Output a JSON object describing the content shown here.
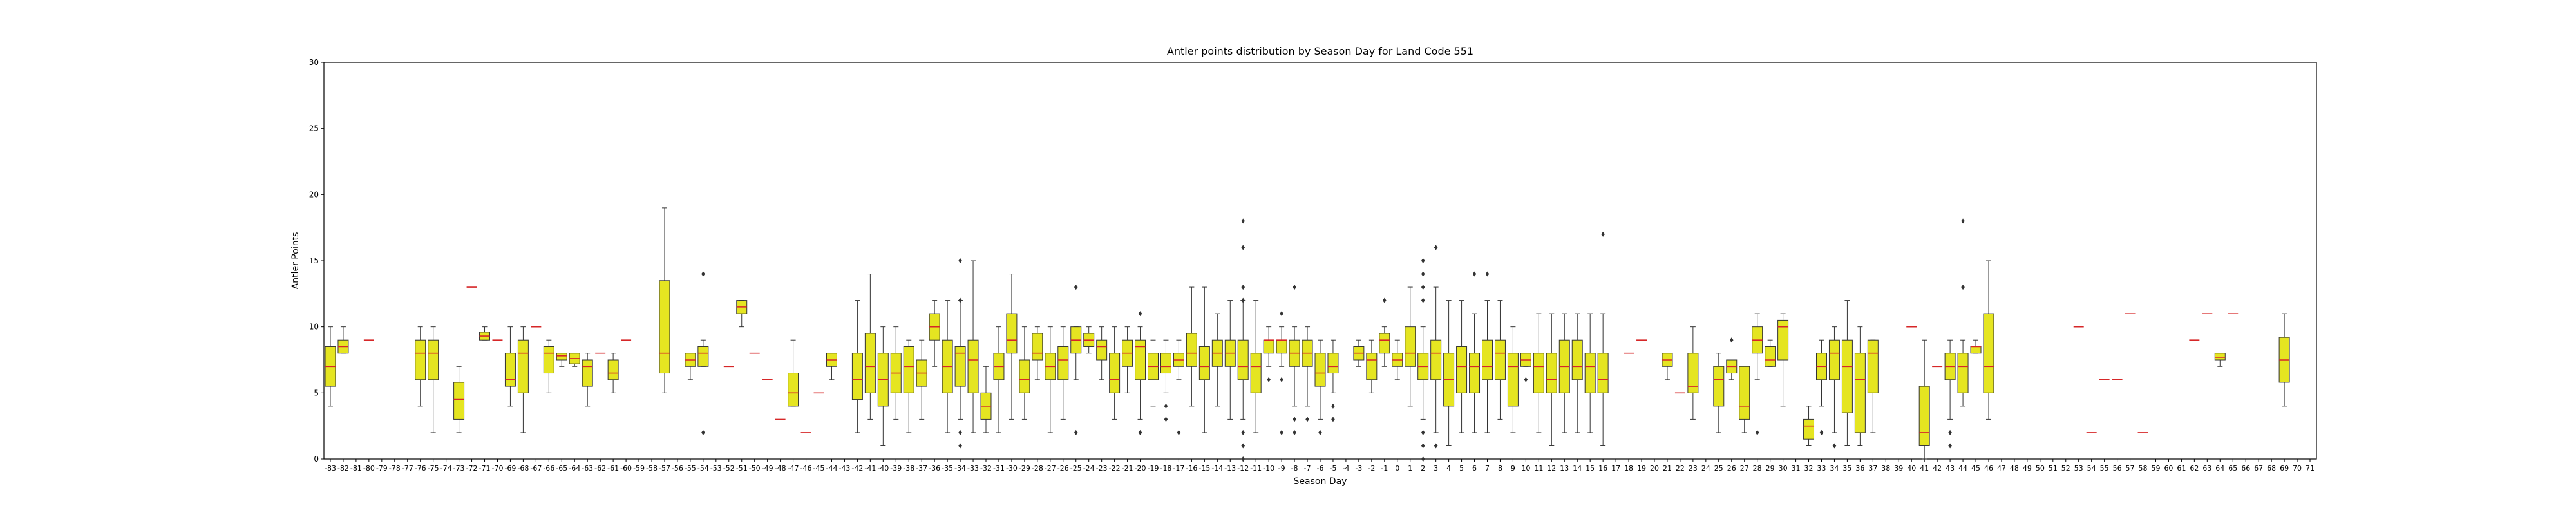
{
  "chart_data": {
    "type": "box",
    "title": "Antler points distribution by Season Day for Land Code 551",
    "xlabel": "Season Day",
    "ylabel": "Antler Points",
    "ylim": [
      0,
      30
    ],
    "yticks": [
      0,
      5,
      10,
      15,
      20,
      25,
      30
    ],
    "x_range": [
      -83,
      71
    ],
    "colors": {
      "box_fill": "#e5e521",
      "median": "#d62728",
      "whisker": "#333333",
      "flier": "#333333"
    },
    "boxes": [
      {
        "day": -83,
        "q1": 5.5,
        "median": 7,
        "q3": 8.5,
        "lo": 4,
        "hi": 10
      },
      {
        "day": -82,
        "q1": 8,
        "median": 8.5,
        "q3": 9,
        "lo": 8,
        "hi": 10
      },
      {
        "day": -80,
        "median": 9
      },
      {
        "day": -76,
        "q1": 6,
        "median": 8,
        "q3": 9,
        "lo": 4,
        "hi": 10
      },
      {
        "day": -75,
        "q1": 6,
        "median": 8,
        "q3": 9,
        "lo": 2,
        "hi": 10
      },
      {
        "day": -73,
        "q1": 3,
        "median": 4.5,
        "q3": 5.8,
        "lo": 2,
        "hi": 7
      },
      {
        "day": -72,
        "median": 13
      },
      {
        "day": -71,
        "q1": 9,
        "median": 9.3,
        "q3": 9.6,
        "lo": 9,
        "hi": 10
      },
      {
        "day": -70,
        "median": 9
      },
      {
        "day": -69,
        "q1": 5.5,
        "median": 6,
        "q3": 8,
        "lo": 4,
        "hi": 10
      },
      {
        "day": -68,
        "q1": 5,
        "median": 8,
        "q3": 9,
        "lo": 2,
        "hi": 10
      },
      {
        "day": -67,
        "median": 10
      },
      {
        "day": -66,
        "q1": 6.5,
        "median": 8,
        "q3": 8.5,
        "lo": 5,
        "hi": 9
      },
      {
        "day": -65,
        "q1": 7.5,
        "median": 7.8,
        "q3": 8,
        "lo": 7,
        "hi": 8
      },
      {
        "day": -64,
        "q1": 7.2,
        "median": 7.6,
        "q3": 8,
        "lo": 7,
        "hi": 8
      },
      {
        "day": -63,
        "q1": 5.5,
        "median": 7,
        "q3": 7.5,
        "lo": 4,
        "hi": 8
      },
      {
        "day": -62,
        "median": 8
      },
      {
        "day": -61,
        "q1": 6,
        "median": 6.5,
        "q3": 7.5,
        "lo": 5,
        "hi": 8
      },
      {
        "day": -60,
        "median": 9
      },
      {
        "day": -57,
        "q1": 6.5,
        "median": 8,
        "q3": 13.5,
        "lo": 5,
        "hi": 19
      },
      {
        "day": -55,
        "q1": 7,
        "median": 7.5,
        "q3": 8,
        "lo": 6,
        "hi": 8
      },
      {
        "day": -54,
        "q1": 7,
        "median": 8,
        "q3": 8.5,
        "lo": 7,
        "hi": 9,
        "fliers": [
          2,
          14
        ]
      },
      {
        "day": -52,
        "median": 7
      },
      {
        "day": -51,
        "q1": 11,
        "median": 11.5,
        "q3": 12,
        "lo": 10,
        "hi": 12
      },
      {
        "day": -50,
        "median": 8
      },
      {
        "day": -49,
        "median": 6
      },
      {
        "day": -48,
        "median": 3
      },
      {
        "day": -47,
        "q1": 4,
        "median": 5,
        "q3": 6.5,
        "lo": 4,
        "hi": 9
      },
      {
        "day": -46,
        "median": 2
      },
      {
        "day": -45,
        "median": 5
      },
      {
        "day": -44,
        "q1": 7,
        "median": 7.5,
        "q3": 8,
        "lo": 6,
        "hi": 8
      },
      {
        "day": -42,
        "q1": 4.5,
        "median": 6,
        "q3": 8,
        "lo": 2,
        "hi": 12
      },
      {
        "day": -41,
        "q1": 5,
        "median": 7,
        "q3": 9.5,
        "lo": 3,
        "hi": 14
      },
      {
        "day": -40,
        "q1": 4,
        "median": 6,
        "q3": 8,
        "lo": 1,
        "hi": 10
      },
      {
        "day": -39,
        "q1": 5,
        "median": 6.5,
        "q3": 8,
        "lo": 3,
        "hi": 10
      },
      {
        "day": -38,
        "q1": 5,
        "median": 7,
        "q3": 8.5,
        "lo": 2,
        "hi": 9
      },
      {
        "day": -37,
        "q1": 5.5,
        "median": 6.5,
        "q3": 7.5,
        "lo": 3,
        "hi": 9
      },
      {
        "day": -36,
        "q1": 9,
        "median": 10,
        "q3": 11,
        "lo": 7,
        "hi": 12
      },
      {
        "day": -35,
        "q1": 5,
        "median": 7,
        "q3": 9,
        "lo": 2,
        "hi": 12
      },
      {
        "day": -34,
        "q1": 5.5,
        "median": 8,
        "q3": 8.5,
        "lo": 3,
        "hi": 12,
        "fliers": [
          15,
          12,
          2,
          1
        ]
      },
      {
        "day": -33,
        "q1": 5,
        "median": 7.5,
        "q3": 9,
        "lo": 2,
        "hi": 15
      },
      {
        "day": -32,
        "q1": 3,
        "median": 4,
        "q3": 5,
        "lo": 2,
        "hi": 7
      },
      {
        "day": -31,
        "q1": 6,
        "median": 7,
        "q3": 8,
        "lo": 2,
        "hi": 10
      },
      {
        "day": -30,
        "q1": 8,
        "median": 9,
        "q3": 11,
        "lo": 3,
        "hi": 14
      },
      {
        "day": -29,
        "q1": 5,
        "median": 6,
        "q3": 7.5,
        "lo": 3,
        "hi": 10
      },
      {
        "day": -28,
        "q1": 7.5,
        "median": 8,
        "q3": 9.5,
        "lo": 6,
        "hi": 10
      },
      {
        "day": -27,
        "q1": 6,
        "median": 7,
        "q3": 8,
        "lo": 2,
        "hi": 10
      },
      {
        "day": -26,
        "q1": 6,
        "median": 7.5,
        "q3": 8.5,
        "lo": 3,
        "hi": 10
      },
      {
        "day": -25,
        "q1": 8,
        "median": 9,
        "q3": 10,
        "lo": 6,
        "hi": 10,
        "fliers": [
          13,
          2
        ]
      },
      {
        "day": -24,
        "q1": 8.5,
        "median": 9,
        "q3": 9.5,
        "lo": 8,
        "hi": 10
      },
      {
        "day": -23,
        "q1": 7.5,
        "median": 8.5,
        "q3": 9,
        "lo": 6,
        "hi": 10
      },
      {
        "day": -22,
        "q1": 5,
        "median": 6,
        "q3": 8,
        "lo": 3,
        "hi": 10
      },
      {
        "day": -21,
        "q1": 7,
        "median": 8,
        "q3": 9,
        "lo": 5,
        "hi": 10
      },
      {
        "day": -20,
        "q1": 6,
        "median": 8.5,
        "q3": 9,
        "lo": 3,
        "hi": 10,
        "fliers": [
          11,
          2
        ]
      },
      {
        "day": -19,
        "q1": 6,
        "median": 7,
        "q3": 8,
        "lo": 4,
        "hi": 9
      },
      {
        "day": -18,
        "q1": 6.5,
        "median": 7,
        "q3": 8,
        "lo": 5,
        "hi": 9,
        "fliers": [
          4,
          3
        ]
      },
      {
        "day": -17,
        "q1": 7,
        "median": 7.5,
        "q3": 8,
        "lo": 6,
        "hi": 9,
        "fliers": [
          2
        ]
      },
      {
        "day": -16,
        "q1": 7,
        "median": 8,
        "q3": 9.5,
        "lo": 4,
        "hi": 13
      },
      {
        "day": -15,
        "q1": 6,
        "median": 7,
        "q3": 8.5,
        "lo": 2,
        "hi": 13
      },
      {
        "day": -14,
        "q1": 7,
        "median": 8,
        "q3": 9,
        "lo": 4,
        "hi": 11
      },
      {
        "day": -13,
        "q1": 7,
        "median": 8,
        "q3": 9,
        "lo": 3,
        "hi": 12
      },
      {
        "day": -12,
        "q1": 6,
        "median": 7,
        "q3": 9,
        "lo": 3,
        "hi": 12,
        "fliers": [
          18,
          16,
          13,
          12,
          2,
          1,
          0
        ]
      },
      {
        "day": -11,
        "q1": 5,
        "median": 7,
        "q3": 8,
        "lo": 2,
        "hi": 12
      },
      {
        "day": -10,
        "q1": 8,
        "median": 9,
        "q3": 9,
        "lo": 7,
        "hi": 10,
        "fliers": [
          6
        ]
      },
      {
        "day": -9,
        "q1": 8,
        "median": 9,
        "q3": 9,
        "lo": 7,
        "hi": 10,
        "fliers": [
          11,
          6,
          2
        ]
      },
      {
        "day": -8,
        "q1": 7,
        "median": 8,
        "q3": 9,
        "lo": 4,
        "hi": 10,
        "fliers": [
          13,
          3,
          2
        ]
      },
      {
        "day": -7,
        "q1": 7,
        "median": 8,
        "q3": 9,
        "lo": 4,
        "hi": 10,
        "fliers": [
          3
        ]
      },
      {
        "day": -6,
        "q1": 5.5,
        "median": 6.5,
        "q3": 8,
        "lo": 3,
        "hi": 9,
        "fliers": [
          2
        ]
      },
      {
        "day": -5,
        "q1": 6.5,
        "median": 7,
        "q3": 8,
        "lo": 5,
        "hi": 9,
        "fliers": [
          4,
          3
        ]
      },
      {
        "day": -3,
        "q1": 7.5,
        "median": 8,
        "q3": 8.5,
        "lo": 7,
        "hi": 9
      },
      {
        "day": -2,
        "q1": 6,
        "median": 7.5,
        "q3": 8,
        "lo": 5,
        "hi": 9
      },
      {
        "day": -1,
        "q1": 8,
        "median": 9,
        "q3": 9.5,
        "lo": 7,
        "hi": 10,
        "fliers": [
          12
        ]
      },
      {
        "day": 0,
        "q1": 7,
        "median": 7.5,
        "q3": 8,
        "lo": 6,
        "hi": 9
      },
      {
        "day": 1,
        "q1": 7,
        "median": 8,
        "q3": 10,
        "lo": 4,
        "hi": 13
      },
      {
        "day": 2,
        "q1": 6,
        "median": 7,
        "q3": 8,
        "lo": 3,
        "hi": 10,
        "fliers": [
          15,
          14,
          13,
          12,
          2,
          1,
          0
        ]
      },
      {
        "day": 3,
        "q1": 6,
        "median": 8,
        "q3": 9,
        "lo": 2,
        "hi": 13,
        "fliers": [
          16,
          1
        ]
      },
      {
        "day": 4,
        "q1": 4,
        "median": 6,
        "q3": 8,
        "lo": 1,
        "hi": 12
      },
      {
        "day": 5,
        "q1": 5,
        "median": 7,
        "q3": 8.5,
        "lo": 2,
        "hi": 12
      },
      {
        "day": 6,
        "q1": 5,
        "median": 7,
        "q3": 8,
        "lo": 2,
        "hi": 11,
        "fliers": [
          14
        ]
      },
      {
        "day": 7,
        "q1": 6,
        "median": 7,
        "q3": 9,
        "lo": 2,
        "hi": 12,
        "fliers": [
          14
        ]
      },
      {
        "day": 8,
        "q1": 6,
        "median": 8,
        "q3": 9,
        "lo": 3,
        "hi": 12
      },
      {
        "day": 9,
        "q1": 4,
        "median": 7,
        "q3": 8,
        "lo": 2,
        "hi": 10
      },
      {
        "day": 10,
        "q1": 7,
        "median": 7.5,
        "q3": 8,
        "lo": 7,
        "hi": 8,
        "fliers": [
          6
        ]
      },
      {
        "day": 11,
        "q1": 5,
        "median": 7,
        "q3": 8,
        "lo": 2,
        "hi": 11
      },
      {
        "day": 12,
        "q1": 5,
        "median": 6,
        "q3": 8,
        "lo": 1,
        "hi": 11
      },
      {
        "day": 13,
        "q1": 5,
        "median": 7,
        "q3": 9,
        "lo": 2,
        "hi": 11
      },
      {
        "day": 14,
        "q1": 6,
        "median": 7,
        "q3": 9,
        "lo": 2,
        "hi": 11
      },
      {
        "day": 15,
        "q1": 5,
        "median": 7,
        "q3": 8,
        "lo": 2,
        "hi": 11
      },
      {
        "day": 16,
        "q1": 5,
        "median": 6,
        "q3": 8,
        "lo": 1,
        "hi": 11,
        "fliers": [
          17
        ]
      },
      {
        "day": 18,
        "median": 8
      },
      {
        "day": 19,
        "median": 9
      },
      {
        "day": 21,
        "q1": 7,
        "median": 7.5,
        "q3": 8,
        "lo": 6,
        "hi": 8
      },
      {
        "day": 22,
        "median": 5
      },
      {
        "day": 23,
        "q1": 5,
        "median": 5.5,
        "q3": 8,
        "lo": 3,
        "hi": 10
      },
      {
        "day": 25,
        "q1": 4,
        "median": 6,
        "q3": 7,
        "lo": 2,
        "hi": 8
      },
      {
        "day": 26,
        "q1": 6.5,
        "median": 7,
        "q3": 7.5,
        "lo": 6,
        "hi": 7.5,
        "fliers": [
          9
        ]
      },
      {
        "day": 27,
        "q1": 3,
        "median": 4,
        "q3": 7,
        "lo": 2,
        "hi": 7
      },
      {
        "day": 28,
        "q1": 8,
        "median": 9,
        "q3": 10,
        "lo": 6,
        "hi": 11,
        "fliers": [
          2
        ]
      },
      {
        "day": 29,
        "q1": 7,
        "median": 7.5,
        "q3": 8.5,
        "lo": 7,
        "hi": 9
      },
      {
        "day": 30,
        "q1": 7.5,
        "median": 10,
        "q3": 10.5,
        "lo": 4,
        "hi": 11
      },
      {
        "day": 32,
        "q1": 1.5,
        "median": 2.5,
        "q3": 3,
        "lo": 1,
        "hi": 4
      },
      {
        "day": 33,
        "q1": 6,
        "median": 7,
        "q3": 8,
        "lo": 4,
        "hi": 9,
        "fliers": [
          2
        ]
      },
      {
        "day": 34,
        "q1": 6,
        "median": 8,
        "q3": 9,
        "lo": 2,
        "hi": 10,
        "fliers": [
          1
        ]
      },
      {
        "day": 35,
        "q1": 3.5,
        "median": 7,
        "q3": 9,
        "lo": 1,
        "hi": 12
      },
      {
        "day": 36,
        "q1": 2,
        "median": 6,
        "q3": 8,
        "lo": 1,
        "hi": 10
      },
      {
        "day": 37,
        "q1": 5,
        "median": 8,
        "q3": 9,
        "lo": 2,
        "hi": 9
      },
      {
        "day": 40,
        "median": 10
      },
      {
        "day": 41,
        "q1": 1,
        "median": 2,
        "q3": 5.5,
        "lo": 0,
        "hi": 9
      },
      {
        "day": 42,
        "median": 7
      },
      {
        "day": 43,
        "q1": 6,
        "median": 7,
        "q3": 8,
        "lo": 3,
        "hi": 9,
        "fliers": [
          2,
          1
        ]
      },
      {
        "day": 44,
        "q1": 5,
        "median": 7,
        "q3": 8,
        "lo": 4,
        "hi": 9,
        "fliers": [
          18,
          13
        ]
      },
      {
        "day": 45,
        "q1": 8,
        "median": 8.5,
        "q3": 8.5,
        "lo": 8,
        "hi": 9
      },
      {
        "day": 46,
        "q1": 5,
        "median": 7,
        "q3": 11,
        "lo": 3,
        "hi": 15
      },
      {
        "day": 53,
        "median": 10
      },
      {
        "day": 54,
        "median": 2
      },
      {
        "day": 55,
        "median": 6
      },
      {
        "day": 56,
        "median": 6
      },
      {
        "day": 57,
        "median": 11
      },
      {
        "day": 58,
        "median": 2
      },
      {
        "day": 62,
        "median": 9
      },
      {
        "day": 63,
        "median": 11
      },
      {
        "day": 64,
        "q1": 7.5,
        "median": 7.7,
        "q3": 8,
        "lo": 7,
        "hi": 8
      },
      {
        "day": 65,
        "median": 11
      },
      {
        "day": 69,
        "q1": 5.8,
        "median": 7.5,
        "q3": 9.2,
        "lo": 4,
        "hi": 11
      }
    ]
  }
}
